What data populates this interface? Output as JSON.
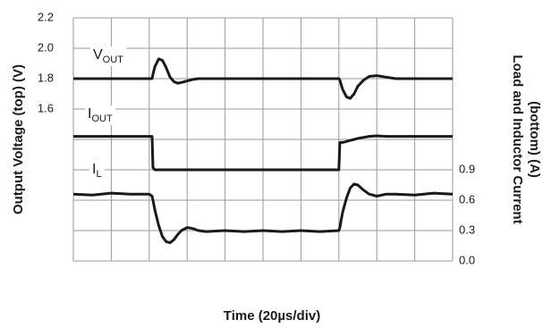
{
  "chart_data": {
    "type": "line",
    "x_label": "Time (20µs/div)",
    "y_label": "Output Voltage (top) (V)",
    "y2_label": [
      "Load and Inductor Current",
      "(bottom) (A)"
    ],
    "xlim": [
      0,
      200
    ],
    "xticks": [
      0,
      20,
      40,
      60,
      80,
      100,
      120,
      140,
      160,
      180,
      200
    ],
    "ylim": [
      0.6,
      2.2
    ],
    "yticks": [
      1.6,
      1.8,
      {
        "value": 2,
        "label": "2.0"
      },
      2.2
    ],
    "ygrid": [
      0.6,
      0.8,
      1,
      1.2,
      1.4,
      1.6,
      1.8,
      2,
      2.2
    ],
    "y2lim": [
      0,
      2.4
    ],
    "y2ticks": [
      {
        "value": 0,
        "label": "0.0"
      },
      0.3,
      0.6,
      0.9
    ],
    "grid": true,
    "x": [
      0,
      10,
      20,
      30,
      40,
      41.5,
      42,
      43,
      45,
      47,
      49,
      51,
      53,
      55,
      57,
      60,
      63,
      66,
      70,
      80,
      90,
      100,
      110,
      120,
      130,
      140,
      140.5,
      141,
      142,
      144,
      146,
      148,
      150,
      153,
      156,
      160,
      165,
      170,
      180,
      190,
      200
    ],
    "series": [
      {
        "name": "VOUT",
        "color": "#1a1a1a",
        "axis": "y",
        "values": [
          1.8,
          1.8,
          1.8,
          1.8,
          1.8,
          1.8,
          1.83,
          1.88,
          1.93,
          1.92,
          1.87,
          1.81,
          1.78,
          1.77,
          1.775,
          1.785,
          1.795,
          1.8,
          1.8,
          1.8,
          1.8,
          1.8,
          1.8,
          1.8,
          1.8,
          1.8,
          1.79,
          1.77,
          1.73,
          1.68,
          1.67,
          1.7,
          1.75,
          1.79,
          1.815,
          1.82,
          1.81,
          1.8,
          1.8,
          1.8,
          1.8
        ]
      },
      {
        "name": "IOUT",
        "color": "#1a1a1a",
        "axis": "y2",
        "values": [
          1.23,
          1.23,
          1.23,
          1.23,
          1.23,
          1.23,
          0.92,
          0.9,
          0.9,
          0.9,
          0.9,
          0.9,
          0.9,
          0.9,
          0.9,
          0.9,
          0.9,
          0.9,
          0.9,
          0.9,
          0.9,
          0.9,
          0.9,
          0.9,
          0.9,
          0.9,
          1.17,
          1.17,
          1.17,
          1.18,
          1.19,
          1.2,
          1.21,
          1.22,
          1.23,
          1.235,
          1.23,
          1.23,
          1.23,
          1.23,
          1.23
        ]
      },
      {
        "name": "IL",
        "color": "#1a1a1a",
        "axis": "y2",
        "values": [
          0.66,
          0.65,
          0.67,
          0.66,
          0.66,
          0.64,
          0.6,
          0.5,
          0.35,
          0.24,
          0.19,
          0.18,
          0.21,
          0.26,
          0.3,
          0.33,
          0.32,
          0.3,
          0.29,
          0.3,
          0.29,
          0.3,
          0.29,
          0.3,
          0.29,
          0.3,
          0.33,
          0.38,
          0.48,
          0.62,
          0.72,
          0.76,
          0.75,
          0.7,
          0.66,
          0.64,
          0.66,
          0.66,
          0.65,
          0.67,
          0.66
        ]
      }
    ]
  }
}
